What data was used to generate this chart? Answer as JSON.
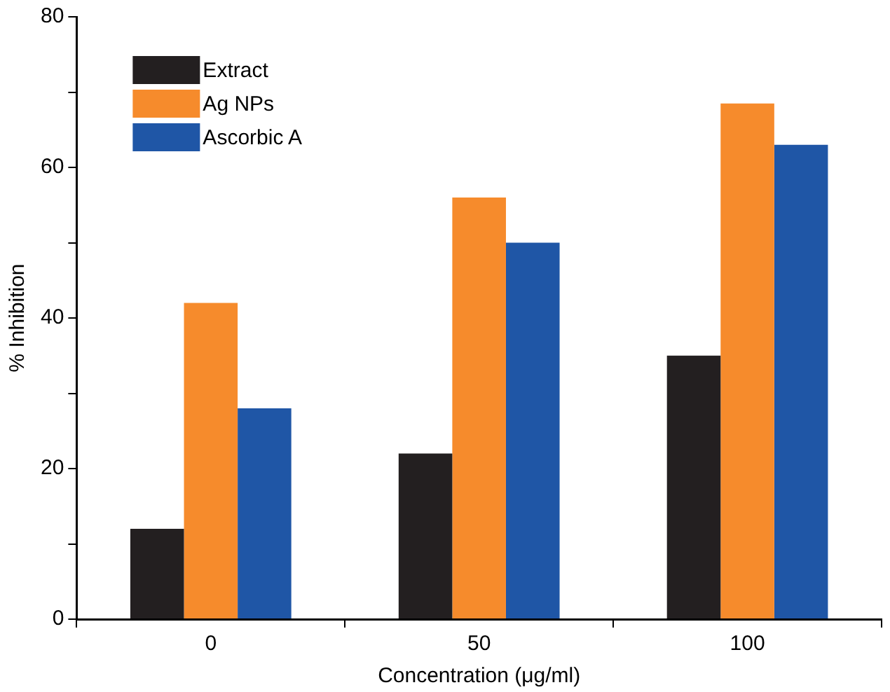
{
  "chart_data": {
    "type": "bar",
    "xlabel": "Concentration (μg/ml)",
    "ylabel": "% Inhibition",
    "categories": [
      "0",
      "50",
      "100"
    ],
    "series": [
      {
        "name": "Extract",
        "color": "#231f20",
        "values": [
          12,
          22,
          35
        ]
      },
      {
        "name": "Ag NPs",
        "color": "#f68b2c",
        "values": [
          42,
          56,
          68.5
        ]
      },
      {
        "name": "Ascorbic A",
        "color": "#1f56a6",
        "values": [
          28,
          50,
          63
        ]
      }
    ],
    "ylim": [
      0,
      80
    ],
    "yticks": [
      0,
      {
        "value": 10,
        "label": null
      },
      20,
      {
        "value": 30,
        "label": null
      },
      40,
      {
        "value": 50,
        "label": null
      },
      60,
      {
        "value": 70,
        "label": null
      },
      80
    ],
    "grid": false,
    "legend": "top left"
  }
}
